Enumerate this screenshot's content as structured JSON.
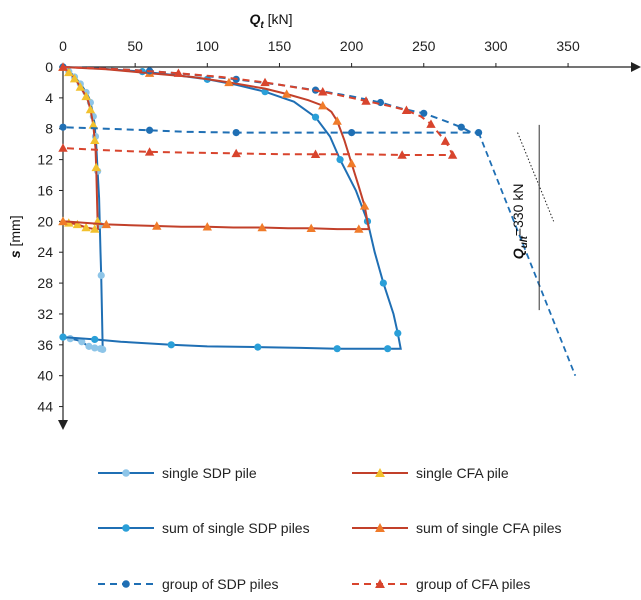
{
  "chart_data": {
    "type": "line",
    "x_axis": {
      "title_main": "Q",
      "title_sub": "t",
      "title_unit": " [kN]",
      "range": [
        0,
        395
      ],
      "ticks": [
        0,
        50,
        100,
        150,
        200,
        250,
        300,
        350
      ],
      "position": "top"
    },
    "y_axis": {
      "title_main": "s",
      "title_unit": " [mm]",
      "range": [
        0,
        46
      ],
      "inverted": true,
      "ticks": [
        0,
        4,
        8,
        12,
        16,
        20,
        24,
        28,
        32,
        36,
        40,
        44
      ]
    },
    "series": [
      {
        "name": "single SDP pile",
        "color": "#1f6fb4",
        "marker_color": "#8ec5e8",
        "marker": "circle",
        "dash": "solid",
        "points": [
          [
            0,
            0
          ],
          [
            2,
            0.3
          ],
          [
            4,
            0.6
          ],
          [
            6,
            0.9
          ],
          [
            8,
            1.3
          ],
          [
            10,
            1.7
          ],
          [
            12,
            2.2
          ],
          [
            14,
            2.7
          ],
          [
            16,
            3.3
          ],
          [
            18,
            4.0
          ],
          [
            19,
            4.6
          ],
          [
            20,
            5.4
          ],
          [
            21,
            6.4
          ],
          [
            22,
            7.5
          ],
          [
            22.5,
            9.0
          ],
          [
            23,
            10.0
          ],
          [
            24,
            13.5
          ],
          [
            25,
            17.0
          ],
          [
            25.5,
            20.5
          ],
          [
            26,
            24.0
          ],
          [
            26.5,
            27.0
          ],
          [
            27,
            32.0
          ],
          [
            27.5,
            36.6
          ],
          [
            27,
            36.6
          ],
          [
            26,
            36.5
          ],
          [
            24,
            36.5
          ],
          [
            22,
            36.4
          ],
          [
            20,
            36.3
          ],
          [
            18,
            36.2
          ],
          [
            16,
            36.0
          ],
          [
            13,
            35.6
          ],
          [
            10,
            35.4
          ],
          [
            5,
            35.2
          ],
          [
            0,
            35.0
          ]
        ]
      },
      {
        "name": "single CFA pile",
        "color": "#c2402a",
        "marker_color": "#f2c12e",
        "marker": "triangle",
        "dash": "solid",
        "points": [
          [
            0,
            0
          ],
          [
            2,
            0.3
          ],
          [
            4,
            0.7
          ],
          [
            6,
            1.0
          ],
          [
            8,
            1.5
          ],
          [
            10,
            2.0
          ],
          [
            12,
            2.6
          ],
          [
            14,
            3.2
          ],
          [
            16,
            3.8
          ],
          [
            17.5,
            4.5
          ],
          [
            19,
            5.5
          ],
          [
            20,
            6.5
          ],
          [
            21,
            7.5
          ],
          [
            21.5,
            8.5
          ],
          [
            22,
            9.5
          ],
          [
            22.5,
            10.5
          ],
          [
            23,
            13.0
          ],
          [
            23.5,
            16.5
          ],
          [
            24,
            20.0
          ],
          [
            24.2,
            21.0
          ],
          [
            22,
            21.0
          ],
          [
            19,
            20.9
          ],
          [
            16,
            20.8
          ],
          [
            13,
            20.6
          ],
          [
            10,
            20.4
          ],
          [
            7,
            20.3
          ],
          [
            4,
            20.2
          ],
          [
            0,
            20.0
          ]
        ]
      },
      {
        "name": "sum of single SDP piles",
        "color": "#1f6fb4",
        "marker_color": "#2a9fd8",
        "marker": "circle",
        "dash": "solid",
        "points": [
          [
            0,
            0
          ],
          [
            25,
            0.2
          ],
          [
            55,
            0.6
          ],
          [
            80,
            1.1
          ],
          [
            100,
            1.6
          ],
          [
            120,
            2.3
          ],
          [
            140,
            3.2
          ],
          [
            160,
            4.5
          ],
          [
            175,
            6.5
          ],
          [
            185,
            9.0
          ],
          [
            192,
            12.0
          ],
          [
            203,
            16.0
          ],
          [
            211,
            20.0
          ],
          [
            216,
            24.0
          ],
          [
            222,
            28.0
          ],
          [
            229,
            32.0
          ],
          [
            232,
            34.5
          ],
          [
            234,
            36.5
          ],
          [
            225,
            36.5
          ],
          [
            210,
            36.5
          ],
          [
            190,
            36.5
          ],
          [
            165,
            36.4
          ],
          [
            135,
            36.3
          ],
          [
            100,
            36.2
          ],
          [
            75,
            36.0
          ],
          [
            40,
            35.6
          ],
          [
            22,
            35.3
          ],
          [
            0,
            35.0
          ]
        ]
      },
      {
        "name": "sum of single CFA piles",
        "color": "#c2402a",
        "marker_color": "#f07b2a",
        "marker": "triangle",
        "dash": "solid",
        "points": [
          [
            0,
            0
          ],
          [
            30,
            0.3
          ],
          [
            60,
            0.8
          ],
          [
            90,
            1.3
          ],
          [
            115,
            2.0
          ],
          [
            140,
            2.8
          ],
          [
            155,
            3.5
          ],
          [
            170,
            4.3
          ],
          [
            180,
            5.0
          ],
          [
            186,
            5.8
          ],
          [
            190,
            7.0
          ],
          [
            195,
            9.5
          ],
          [
            200,
            12.5
          ],
          [
            205,
            15.5
          ],
          [
            209,
            18.0
          ],
          [
            212,
            21.0
          ],
          [
            205,
            21.0
          ],
          [
            190,
            21.0
          ],
          [
            172,
            20.9
          ],
          [
            156,
            20.9
          ],
          [
            138,
            20.8
          ],
          [
            118,
            20.8
          ],
          [
            100,
            20.7
          ],
          [
            82,
            20.7
          ],
          [
            65,
            20.6
          ],
          [
            47,
            20.5
          ],
          [
            30,
            20.4
          ],
          [
            0,
            20.0
          ]
        ]
      },
      {
        "name": "group of SDP piles",
        "color": "#1f6fb4",
        "marker_color": "#1f6fb4",
        "marker": "circle",
        "dash": "dashed",
        "points": [
          [
            0,
            0
          ],
          [
            30,
            0.2
          ],
          [
            60,
            0.5
          ],
          [
            90,
            1.0
          ],
          [
            120,
            1.6
          ],
          [
            150,
            2.3
          ],
          [
            175,
            3.0
          ],
          [
            200,
            3.8
          ],
          [
            220,
            4.6
          ],
          [
            235,
            5.4
          ],
          [
            250,
            6.0
          ],
          [
            262,
            6.8
          ],
          [
            276,
            7.8
          ],
          [
            282,
            8.4
          ],
          [
            288,
            8.5
          ],
          [
            240,
            8.5
          ],
          [
            200,
            8.5
          ],
          [
            160,
            8.5
          ],
          [
            120,
            8.5
          ],
          [
            85,
            8.4
          ],
          [
            60,
            8.2
          ],
          [
            30,
            8.0
          ],
          [
            0,
            7.8
          ]
        ]
      },
      {
        "name": "group of CFA piles",
        "color": "#d8442d",
        "marker_color": "#d8442d",
        "marker": "triangle",
        "dash": "dashed",
        "points": [
          [
            0,
            0
          ],
          [
            40,
            0.3
          ],
          [
            80,
            0.8
          ],
          [
            110,
            1.3
          ],
          [
            140,
            2.0
          ],
          [
            160,
            2.6
          ],
          [
            180,
            3.2
          ],
          [
            195,
            3.8
          ],
          [
            210,
            4.4
          ],
          [
            225,
            5.0
          ],
          [
            238,
            5.6
          ],
          [
            248,
            6.4
          ],
          [
            255,
            7.4
          ],
          [
            260,
            8.5
          ],
          [
            265,
            9.6
          ],
          [
            268,
            10.6
          ],
          [
            270,
            11.4
          ],
          [
            255,
            11.4
          ],
          [
            235,
            11.4
          ],
          [
            205,
            11.3
          ],
          [
            175,
            11.3
          ],
          [
            150,
            11.3
          ],
          [
            120,
            11.2
          ],
          [
            90,
            11.1
          ],
          [
            60,
            11.0
          ],
          [
            30,
            10.8
          ],
          [
            0,
            10.5
          ]
        ]
      }
    ],
    "annotation": {
      "text_main": "Q",
      "text_sub": "ult",
      "text_rest": "=330 kN",
      "x_value": 330,
      "y_range": [
        7.5,
        31.5
      ]
    },
    "extra_lines": [
      {
        "style": "dashed",
        "color": "#1f6fb4",
        "points": [
          [
            288,
            8.5
          ],
          [
            355,
            40.0
          ]
        ]
      },
      {
        "style": "dotted",
        "color": "#222222",
        "points": [
          [
            315,
            8.5
          ],
          [
            340,
            20.0
          ]
        ]
      }
    ],
    "legend": [
      {
        "series": 0,
        "label": "single SDP pile"
      },
      {
        "series": 1,
        "label": "single CFA pile"
      },
      {
        "series": 2,
        "label": "sum of single SDP piles"
      },
      {
        "series": 3,
        "label": "sum of single CFA piles"
      },
      {
        "series": 4,
        "label": "group of SDP piles"
      },
      {
        "series": 5,
        "label": "group of CFA piles"
      }
    ],
    "legend_placement": "bottom",
    "grid": false
  }
}
